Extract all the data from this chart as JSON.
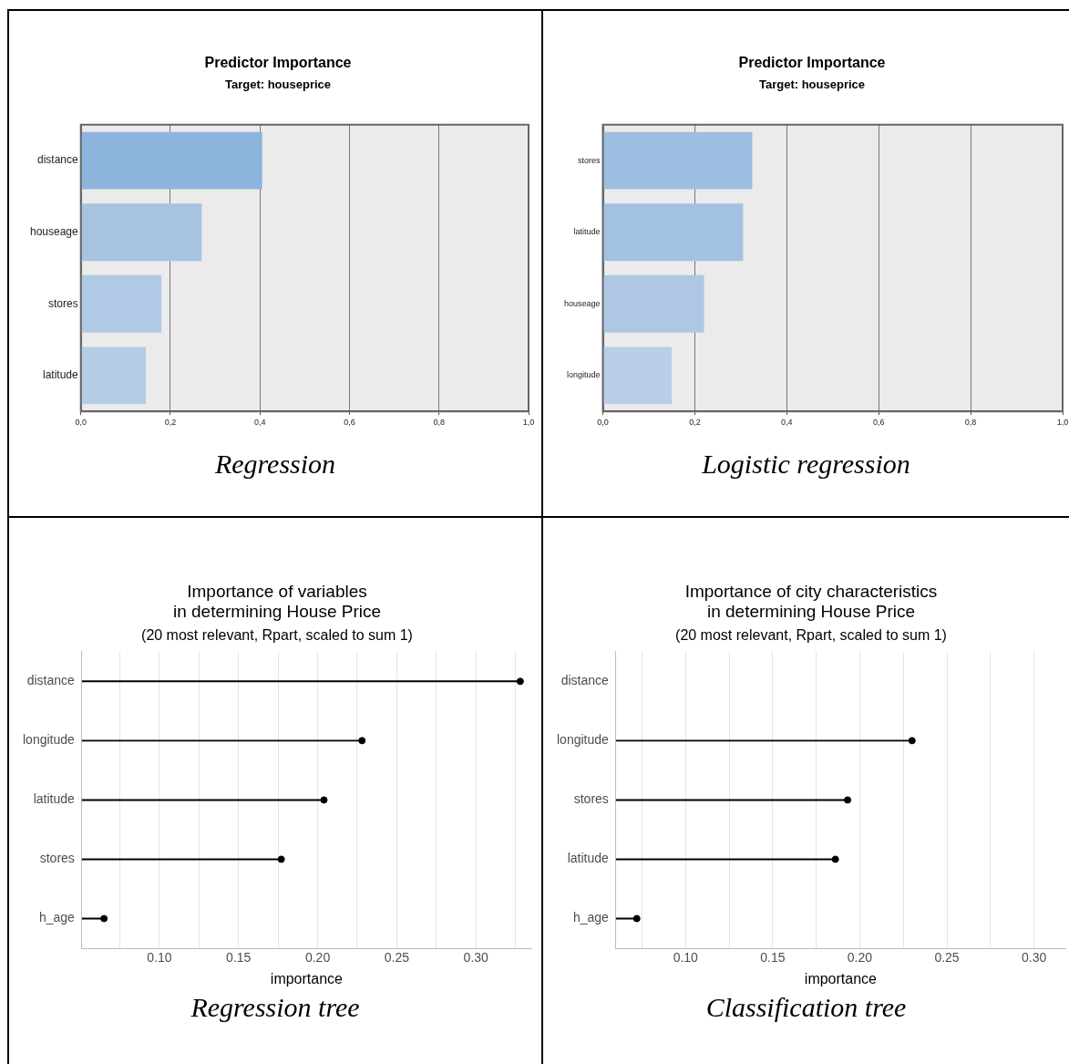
{
  "chart_data": [
    {
      "type": "bar",
      "orientation": "horizontal",
      "title": "Predictor Importance",
      "subtitle": "Target: houseprice",
      "categories": [
        "distance",
        "houseage",
        "stores",
        "latitude"
      ],
      "values": [
        0.405,
        0.27,
        0.18,
        0.145
      ],
      "colors": [
        "#8db4dd",
        "#a6c3e2",
        "#b0c9e4",
        "#b4cce6"
      ],
      "xlim": [
        0,
        1
      ],
      "xticks": [
        {
          "value": 0,
          "label": "0,0"
        },
        {
          "value": 0.2,
          "label": "0,2"
        },
        {
          "value": 0.4,
          "label": "0,4"
        },
        {
          "value": 0.6,
          "label": "0,6"
        },
        {
          "value": 0.8,
          "label": "0,8"
        },
        {
          "value": 1,
          "label": "1,0"
        }
      ],
      "grid": "x",
      "legend": false,
      "annotations": [
        "Regression"
      ]
    },
    {
      "type": "bar",
      "orientation": "horizontal",
      "title": "Predictor Importance",
      "subtitle": "Target: houseprice",
      "categories": [
        "stores",
        "latitude",
        "houseage",
        "longitude"
      ],
      "values": [
        0.325,
        0.305,
        0.22,
        0.15
      ],
      "colors": [
        "#9dbfe1",
        "#a3c2e3",
        "#aec8e4",
        "#b8cfe7"
      ],
      "xlim": [
        0,
        1
      ],
      "xticks": [
        {
          "value": 0,
          "label": "0,0"
        },
        {
          "value": 0.2,
          "label": "0,2"
        },
        {
          "value": 0.4,
          "label": "0,4"
        },
        {
          "value": 0.6,
          "label": "0,6"
        },
        {
          "value": 0.8,
          "label": "0,8"
        },
        {
          "value": 1,
          "label": "1,0"
        }
      ],
      "grid": "x",
      "legend": false,
      "annotations": [
        "Logistic regression"
      ]
    },
    {
      "type": "lollipop",
      "orientation": "horizontal",
      "title": "Importance of variables\nin determining House Price",
      "subtitle": "(20 most relevant, Rpart, scaled to sum 1)",
      "xlabel": "importance",
      "categories": [
        "distance",
        "longitude",
        "latitude",
        "stores",
        "h_age"
      ],
      "values": [
        0.328,
        0.228,
        0.204,
        0.177,
        0.065
      ],
      "color": "#000000",
      "marker": "circle",
      "xlim": [
        0.051,
        0.335
      ],
      "xticks": [
        {
          "value": 0.075,
          "label": null
        },
        {
          "value": 0.1,
          "label": "0.10"
        },
        {
          "value": 0.125,
          "label": null
        },
        {
          "value": 0.15,
          "label": "0.15"
        },
        {
          "value": 0.175,
          "label": null
        },
        {
          "value": 0.2,
          "label": "0.20"
        },
        {
          "value": 0.225,
          "label": null
        },
        {
          "value": 0.25,
          "label": "0.25"
        },
        {
          "value": 0.275,
          "label": null
        },
        {
          "value": 0.3,
          "label": "0.30"
        },
        {
          "value": 0.325,
          "label": null
        }
      ],
      "grid": "x",
      "legend": false,
      "annotations": [
        "Regression tree"
      ]
    },
    {
      "type": "lollipop",
      "orientation": "horizontal",
      "title": "Importance of city characteristics\nin determining House Price",
      "subtitle": "(20 most relevant, Rpart, scaled to sum 1)",
      "xlabel": "importance",
      "categories": [
        "distance",
        "longitude",
        "stores",
        "latitude",
        "h_age"
      ],
      "values": [
        null,
        0.23,
        0.193,
        0.186,
        0.072
      ],
      "color": "#000000",
      "marker": "circle",
      "xlim": [
        0.06,
        0.318
      ],
      "xticks": [
        {
          "value": 0.075,
          "label": null
        },
        {
          "value": 0.1,
          "label": "0.10"
        },
        {
          "value": 0.125,
          "label": null
        },
        {
          "value": 0.15,
          "label": "0.15"
        },
        {
          "value": 0.175,
          "label": null
        },
        {
          "value": 0.2,
          "label": "0.20"
        },
        {
          "value": 0.225,
          "label": null
        },
        {
          "value": 0.25,
          "label": "0.25"
        },
        {
          "value": 0.275,
          "label": null
        },
        {
          "value": 0.3,
          "label": "0.30"
        }
      ],
      "grid": "x",
      "legend": false,
      "annotations": [
        "Classification tree"
      ]
    }
  ]
}
